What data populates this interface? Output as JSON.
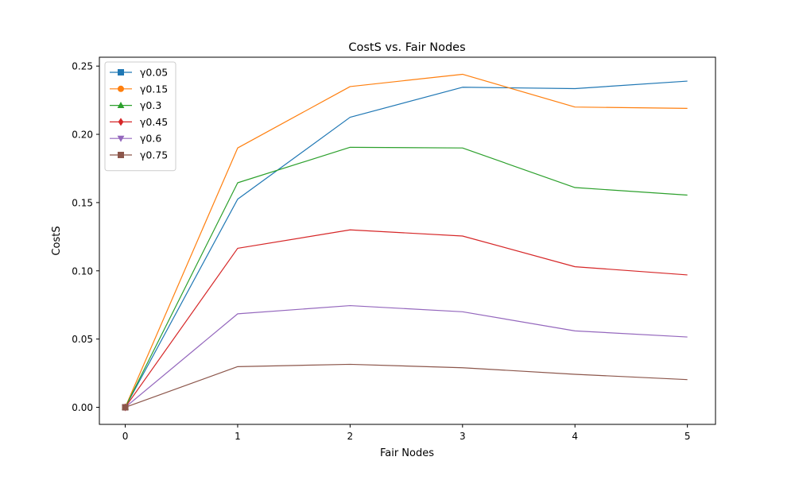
{
  "chart_data": {
    "type": "line",
    "title": "CostS vs. Fair Nodes",
    "xlabel": "Fair Nodes",
    "ylabel": "CostS",
    "x": [
      0,
      1,
      2,
      3,
      4,
      5
    ],
    "xlim": [
      -0.23,
      5.25
    ],
    "ylim": [
      -0.0125,
      0.2565
    ],
    "xticks": [
      0,
      1,
      2,
      3,
      4,
      5
    ],
    "xtick_labels": [
      "0",
      "1",
      "2",
      "3",
      "4",
      "5"
    ],
    "yticks": [
      0.0,
      0.05,
      0.1,
      0.15,
      0.2,
      0.25
    ],
    "ytick_labels": [
      "0.00",
      "0.05",
      "0.10",
      "0.15",
      "0.20",
      "0.25"
    ],
    "grid": false,
    "legend_position": "top-left",
    "series": [
      {
        "name": "γ0.05",
        "color": "#1f77b4",
        "marker": "square",
        "values": [
          0.0,
          0.1525,
          0.2125,
          0.2345,
          0.2335,
          0.239
        ]
      },
      {
        "name": "γ0.15",
        "color": "#ff7f0e",
        "marker": "circle",
        "values": [
          0.0,
          0.19,
          0.235,
          0.244,
          0.22,
          0.219
        ]
      },
      {
        "name": "γ0.3",
        "color": "#2ca02c",
        "marker": "triangle-up",
        "values": [
          0.0,
          0.1645,
          0.1905,
          0.19,
          0.161,
          0.1555
        ]
      },
      {
        "name": "γ0.45",
        "color": "#d62728",
        "marker": "diamond",
        "values": [
          0.0,
          0.1165,
          0.13,
          0.1255,
          0.103,
          0.097
        ]
      },
      {
        "name": "γ0.6",
        "color": "#9467bd",
        "marker": "triangle-down",
        "values": [
          0.0,
          0.0685,
          0.0745,
          0.07,
          0.056,
          0.0515
        ]
      },
      {
        "name": "γ0.75",
        "color": "#8c564b",
        "marker": "square",
        "values": [
          0.0,
          0.0298,
          0.0315,
          0.029,
          0.0242,
          0.0203
        ]
      }
    ]
  }
}
